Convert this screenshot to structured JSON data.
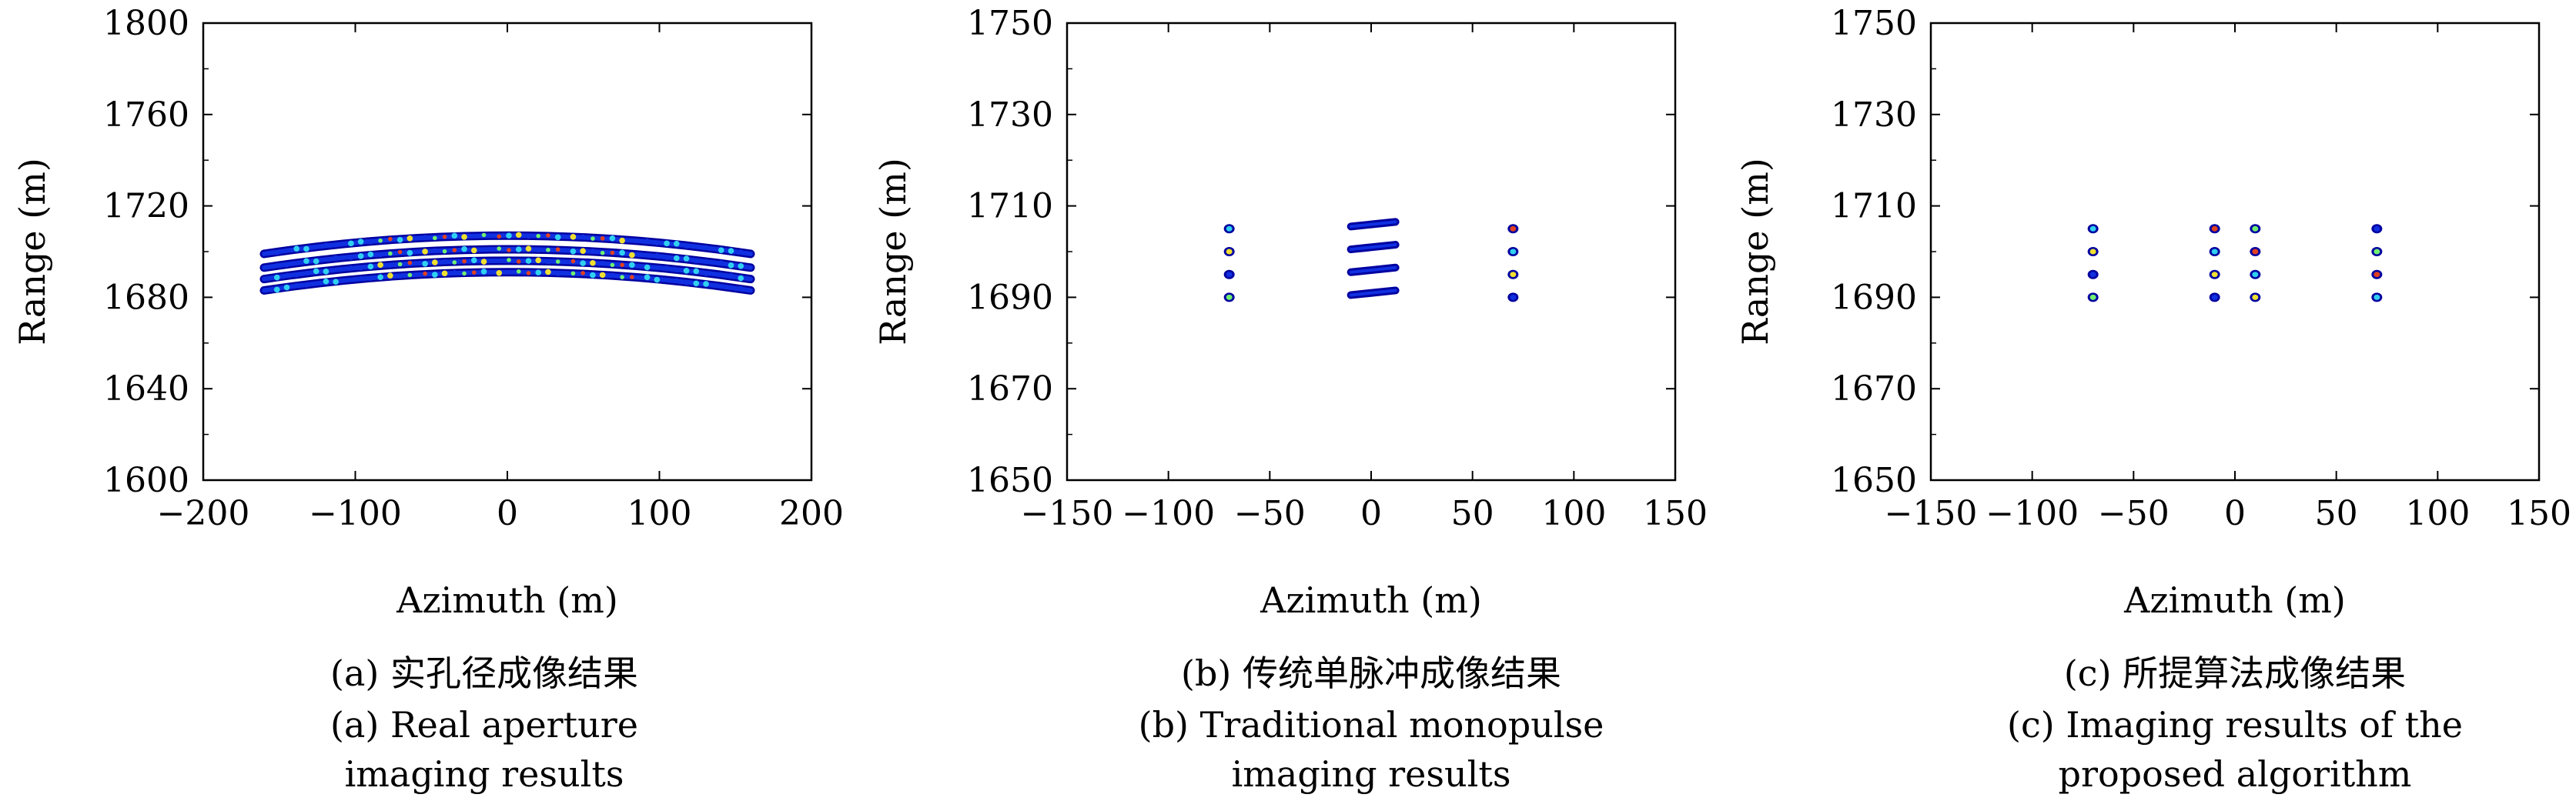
{
  "chart_data": [
    {
      "type": "scatter",
      "panel": "(a)",
      "caption_cn": "(a) 实孔径成像结果",
      "caption_en_line1": "(a) Real aperture",
      "caption_en_line2": "imaging results",
      "xlabel": "Azimuth (m)",
      "ylabel": "Range (m)",
      "xlim": [
        -200,
        200
      ],
      "ylim": [
        1600,
        1800
      ],
      "xticks": [
        "−200",
        "−100",
        "0",
        "100",
        "200"
      ],
      "xtick_values": [
        -200,
        -100,
        0,
        100,
        200
      ],
      "yticks": [
        "1600",
        "1640",
        "1680",
        "1720",
        "1760",
        "1800"
      ],
      "ytick_values": [
        1600,
        1640,
        1680,
        1720,
        1760,
        1800
      ],
      "arcs": [
        {
          "range_center": 1707,
          "range_edge": 1699,
          "az_span": [
            -160,
            160
          ]
        },
        {
          "range_center": 1701,
          "range_edge": 1693,
          "az_span": [
            -160,
            160
          ]
        },
        {
          "range_center": 1696,
          "range_edge": 1688,
          "az_span": [
            -160,
            160
          ]
        },
        {
          "range_center": 1691,
          "range_edge": 1683,
          "az_span": [
            -160,
            160
          ]
        }
      ]
    },
    {
      "type": "scatter",
      "panel": "(b)",
      "caption_cn": "(b) 传统单脉冲成像结果",
      "caption_en_line1": "(b) Traditional monopulse",
      "caption_en_line2": "imaging results",
      "xlabel": "Azimuth (m)",
      "ylabel": "Range (m)",
      "xlim": [
        -150,
        150
      ],
      "ylim": [
        1650,
        1750
      ],
      "xticks": [
        "−150",
        "−100",
        "−50",
        "0",
        "50",
        "100",
        "150"
      ],
      "xtick_values": [
        -150,
        -100,
        -50,
        0,
        50,
        100,
        150
      ],
      "yticks": [
        "1650",
        "1670",
        "1690",
        "1710",
        "1730",
        "1750"
      ],
      "ytick_values": [
        1650,
        1670,
        1690,
        1710,
        1730,
        1750
      ],
      "targets": [
        {
          "x": -70,
          "y": 1705
        },
        {
          "x": -70,
          "y": 1700
        },
        {
          "x": -70,
          "y": 1695
        },
        {
          "x": -70,
          "y": 1690
        },
        {
          "x": 70,
          "y": 1705
        },
        {
          "x": 70,
          "y": 1700
        },
        {
          "x": 70,
          "y": 1695
        },
        {
          "x": 70,
          "y": 1690
        }
      ],
      "streaks": [
        {
          "x0": -10,
          "x1": 12,
          "y": 1706
        },
        {
          "x0": -10,
          "x1": 12,
          "y": 1701
        },
        {
          "x0": -10,
          "x1": 12,
          "y": 1696
        },
        {
          "x0": -10,
          "x1": 12,
          "y": 1691
        }
      ]
    },
    {
      "type": "scatter",
      "panel": "(c)",
      "caption_cn": "(c) 所提算法成像结果",
      "caption_en_line1": "(c) Imaging results of the",
      "caption_en_line2": "proposed algorithm",
      "xlabel": "Azimuth (m)",
      "ylabel": "Range (m)",
      "xlim": [
        -150,
        150
      ],
      "ylim": [
        1650,
        1750
      ],
      "xticks": [
        "−150",
        "−100",
        "−50",
        "0",
        "50",
        "100",
        "150"
      ],
      "xtick_values": [
        -150,
        -100,
        -50,
        0,
        50,
        100,
        150
      ],
      "yticks": [
        "1650",
        "1670",
        "1690",
        "1710",
        "1730",
        "1750"
      ],
      "ytick_values": [
        1650,
        1670,
        1690,
        1710,
        1730,
        1750
      ],
      "targets": [
        {
          "x": -70,
          "y": 1705
        },
        {
          "x": -70,
          "y": 1700
        },
        {
          "x": -70,
          "y": 1695
        },
        {
          "x": -70,
          "y": 1690
        },
        {
          "x": -10,
          "y": 1705
        },
        {
          "x": -10,
          "y": 1700
        },
        {
          "x": -10,
          "y": 1695
        },
        {
          "x": -10,
          "y": 1690
        },
        {
          "x": 10,
          "y": 1705
        },
        {
          "x": 10,
          "y": 1700
        },
        {
          "x": 10,
          "y": 1695
        },
        {
          "x": 10,
          "y": 1690
        },
        {
          "x": 70,
          "y": 1705
        },
        {
          "x": 70,
          "y": 1700
        },
        {
          "x": 70,
          "y": 1695
        },
        {
          "x": 70,
          "y": 1690
        }
      ]
    }
  ],
  "colors": {
    "axis": "#000000",
    "jet_dark": "#0000a0",
    "jet_blue": "#1030e0",
    "jet_cyan": "#30d0f0",
    "jet_green": "#70f070",
    "jet_yellow": "#f0e030",
    "jet_red": "#e04020"
  }
}
